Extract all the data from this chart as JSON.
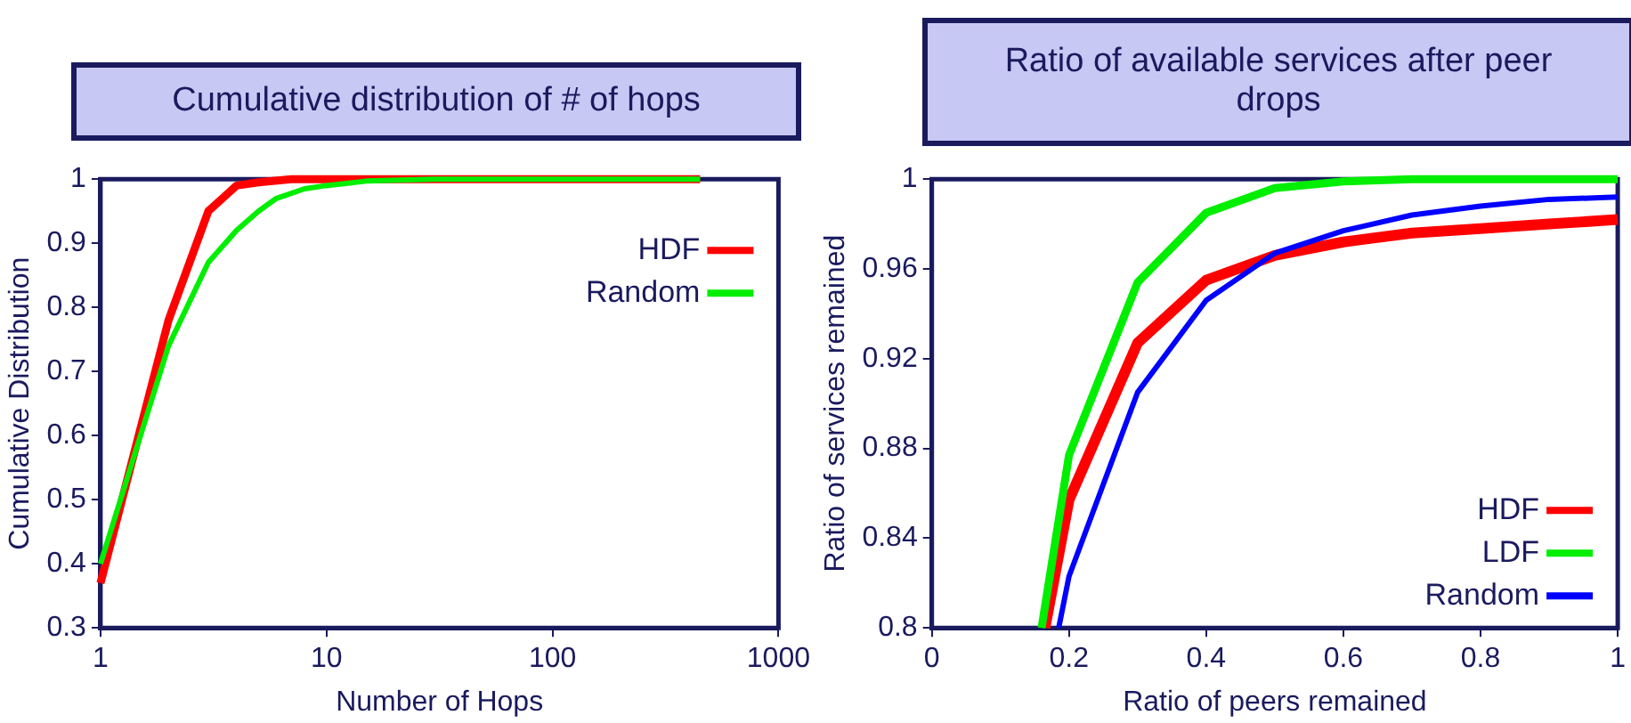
{
  "chart_data": [
    {
      "type": "line",
      "title": "Cumulative distribution of # of hops",
      "xlabel": "Number of Hops",
      "ylabel": "Cumulative Distribution",
      "log": "x",
      "xlim": [
        1,
        1000
      ],
      "xticks": [
        1,
        10,
        100,
        1000
      ],
      "ylim": [
        0.3,
        1
      ],
      "yticks": [
        0.3,
        0.4,
        0.5,
        0.6,
        0.7,
        0.8,
        0.9,
        1
      ],
      "grid": false,
      "legend": "top right",
      "marker": "none",
      "line_style": "solid",
      "series": [
        {
          "name": "HDF",
          "color": "#ff0000",
          "x": [
            1,
            2,
            3,
            4,
            5,
            7,
            10,
            450
          ],
          "values": [
            0.37,
            0.78,
            0.95,
            0.99,
            0.995,
            1.0,
            1.0,
            1.0
          ]
        },
        {
          "name": "Random",
          "color": "#00ee00",
          "x": [
            1,
            2,
            3,
            4,
            5,
            6,
            8,
            10,
            15,
            30,
            450
          ],
          "values": [
            0.4,
            0.74,
            0.87,
            0.92,
            0.95,
            0.97,
            0.985,
            0.99,
            0.997,
            1.0,
            1.0
          ]
        }
      ]
    },
    {
      "type": "line",
      "title": "Ratio of available services after peer drops",
      "xlabel": "Ratio of peers remained",
      "ylabel": "Ratio of services remained",
      "xlim": [
        0,
        1
      ],
      "xticks": [
        0,
        0.2,
        0.4,
        0.6,
        0.8,
        1
      ],
      "ylim": [
        0.8,
        1
      ],
      "yticks": [
        0.8,
        0.84,
        0.88,
        0.92,
        0.96,
        1
      ],
      "grid": false,
      "legend": "bottom right",
      "marker": "none",
      "line_style": "solid",
      "series": [
        {
          "name": "HDF",
          "color": "#ff0000",
          "x": [
            0.165,
            0.2,
            0.3,
            0.4,
            0.5,
            0.6,
            0.7,
            0.8,
            0.9,
            1.0
          ],
          "values": [
            0.8,
            0.857,
            0.927,
            0.955,
            0.966,
            0.972,
            0.976,
            0.978,
            0.98,
            0.982
          ]
        },
        {
          "name": "LDF",
          "color": "#00ee00",
          "x": [
            0.16,
            0.2,
            0.3,
            0.4,
            0.5,
            0.6,
            0.7,
            1.0
          ],
          "values": [
            0.8,
            0.877,
            0.954,
            0.985,
            0.996,
            0.999,
            1.0,
            1.0
          ]
        },
        {
          "name": "Random",
          "color": "#0000ff",
          "x": [
            0.185,
            0.2,
            0.3,
            0.4,
            0.5,
            0.6,
            0.7,
            0.8,
            0.9,
            1.0
          ],
          "values": [
            0.8,
            0.823,
            0.905,
            0.946,
            0.967,
            0.977,
            0.984,
            0.988,
            0.991,
            0.992
          ]
        }
      ]
    }
  ]
}
